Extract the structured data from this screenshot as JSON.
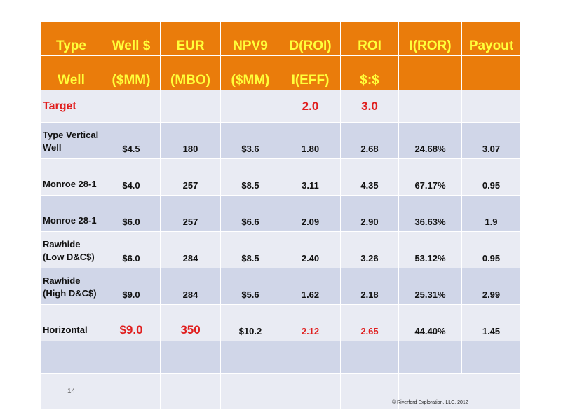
{
  "header_row1": [
    "Type",
    "Well $",
    "EUR",
    "NPV9",
    "D(ROI)",
    "ROI",
    "I(ROR)",
    "Payout"
  ],
  "header_row2": [
    "Well",
    "($MM)",
    "(MBO)",
    "($MM)",
    "I(EFF)",
    "$:$",
    "",
    ""
  ],
  "target": {
    "label": "Target",
    "d_roi": "2.0",
    "roi": "3.0"
  },
  "rows": [
    {
      "name": "Type Vertical Well",
      "well": "$4.5",
      "eur": "180",
      "npv": "$3.6",
      "droi": "1.80",
      "roi": "2.68",
      "iror": "24.68%",
      "payout": "3.07"
    },
    {
      "name": "Monroe 28-1",
      "well": "$4.0",
      "eur": "257",
      "npv": "$8.5",
      "droi": "3.11",
      "roi": "4.35",
      "iror": "67.17%",
      "payout": "0.95"
    },
    {
      "name": "Monroe 28-1",
      "well": "$6.0",
      "eur": "257",
      "npv": "$6.6",
      "droi": "2.09",
      "roi": "2.90",
      "iror": "36.63%",
      "payout": "1.9"
    },
    {
      "name": "Rawhide (Low D&C$)",
      "well": "$6.0",
      "eur": "284",
      "npv": "$8.5",
      "droi": "2.40",
      "roi": "3.26",
      "iror": "53.12%",
      "payout": "0.95"
    },
    {
      "name": "Rawhide (High D&C$)",
      "well": "$9.0",
      "eur": "284",
      "npv": "$5.6",
      "droi": "1.62",
      "roi": "2.18",
      "iror": "25.31%",
      "payout": "2.99"
    },
    {
      "name": "Horizontal",
      "well": "$9.0",
      "eur": "350",
      "npv": "$10.2",
      "droi": "2.12",
      "roi": "2.65",
      "iror": "44.40%",
      "payout": "1.45"
    }
  ],
  "footer": {
    "page_number": "14",
    "copyright": "© Riverford Exploration, LLC, 2012"
  },
  "colors": {
    "header_bg": "#ea7c0b",
    "header_text": "#ffff3a",
    "row_light": "#e9ebf3",
    "row_dark": "#d0d6e8",
    "highlight_red": "#e01e1e"
  }
}
